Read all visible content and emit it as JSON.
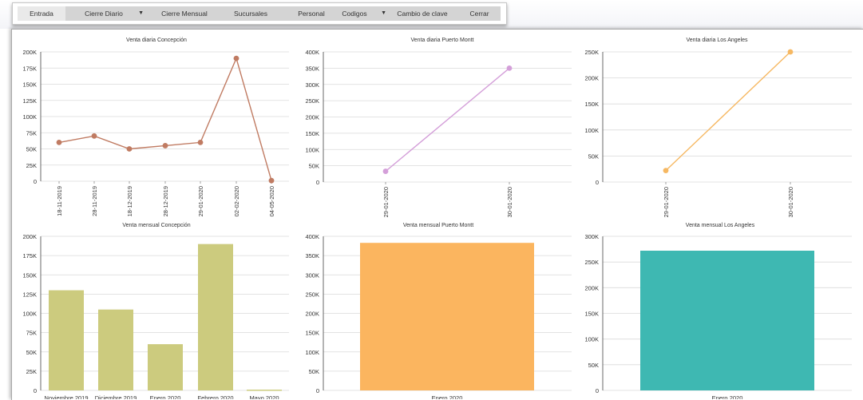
{
  "menu": {
    "items": [
      {
        "label": "Entrada",
        "has_dropdown": false,
        "active": true
      },
      {
        "label": "Cierre Diario",
        "has_dropdown": true
      },
      {
        "label": "Cierre Mensual",
        "has_dropdown": false
      },
      {
        "label": "Sucursales",
        "has_dropdown": false
      },
      {
        "label": "Personal",
        "has_dropdown": false
      },
      {
        "label": "Codigos",
        "has_dropdown": true
      },
      {
        "label": "Cambio de clave",
        "has_dropdown": false
      },
      {
        "label": "Cerrar",
        "has_dropdown": false
      }
    ]
  },
  "chart_data": [
    {
      "type": "line",
      "title": "Venta diaria Concepción",
      "categories": [
        "18-11-2019",
        "28-11-2019",
        "18-12-2019",
        "28-12-2019",
        "29-01-2020",
        "02-02-2020",
        "04-05-2020"
      ],
      "values": [
        60000,
        70000,
        50000,
        55000,
        60000,
        190000,
        1000
      ],
      "ylim": [
        0,
        200000
      ],
      "yticks": [
        "0",
        "25K",
        "50K",
        "75K",
        "100K",
        "125K",
        "150K",
        "175K",
        "200K"
      ],
      "color": "#c07b62"
    },
    {
      "type": "line",
      "title": "Venta diaria Puerto Montt",
      "categories": [
        "29-01-2020",
        "30-01-2020"
      ],
      "values": [
        33000,
        350000
      ],
      "ylim": [
        0,
        400000
      ],
      "yticks": [
        "0",
        "50K",
        "100K",
        "150K",
        "200K",
        "250K",
        "300K",
        "350K",
        "400K"
      ],
      "color": "#d49fd9"
    },
    {
      "type": "line",
      "title": "Venta diaria Los Angeles",
      "categories": [
        "29-01-2020",
        "30-01-2020"
      ],
      "values": [
        22000,
        250000
      ],
      "ylim": [
        0,
        250000
      ],
      "yticks": [
        "0",
        "50K",
        "100K",
        "150K",
        "200K",
        "250K"
      ],
      "color": "#f6b862"
    },
    {
      "type": "bar",
      "title": "Venta mensual Concepción",
      "categories": [
        "Noviembre 2019",
        "Diciembre 2019",
        "Enero 2020",
        "Febrero 2020",
        "Mayo 2020"
      ],
      "values": [
        130000,
        105000,
        60000,
        190000,
        1000
      ],
      "ylim": [
        0,
        200000
      ],
      "yticks": [
        "0",
        "25K",
        "50K",
        "75K",
        "100K",
        "125K",
        "150K",
        "175K",
        "200K"
      ],
      "color": "#cccb7e"
    },
    {
      "type": "bar",
      "title": "Venta mensual Puerto Montt",
      "categories": [
        "Enero 2020"
      ],
      "values": [
        383000
      ],
      "ylim": [
        0,
        400000
      ],
      "yticks": [
        "0",
        "50K",
        "100K",
        "150K",
        "200K",
        "250K",
        "300K",
        "350K",
        "400K"
      ],
      "color": "#fbb55f"
    },
    {
      "type": "bar",
      "title": "Venta mensual Los Angeles",
      "categories": [
        "Enero 2020"
      ],
      "values": [
        272000
      ],
      "ylim": [
        0,
        300000
      ],
      "yticks": [
        "0",
        "50K",
        "100K",
        "150K",
        "200K",
        "250K",
        "300K"
      ],
      "color": "#3eb8b2"
    }
  ]
}
